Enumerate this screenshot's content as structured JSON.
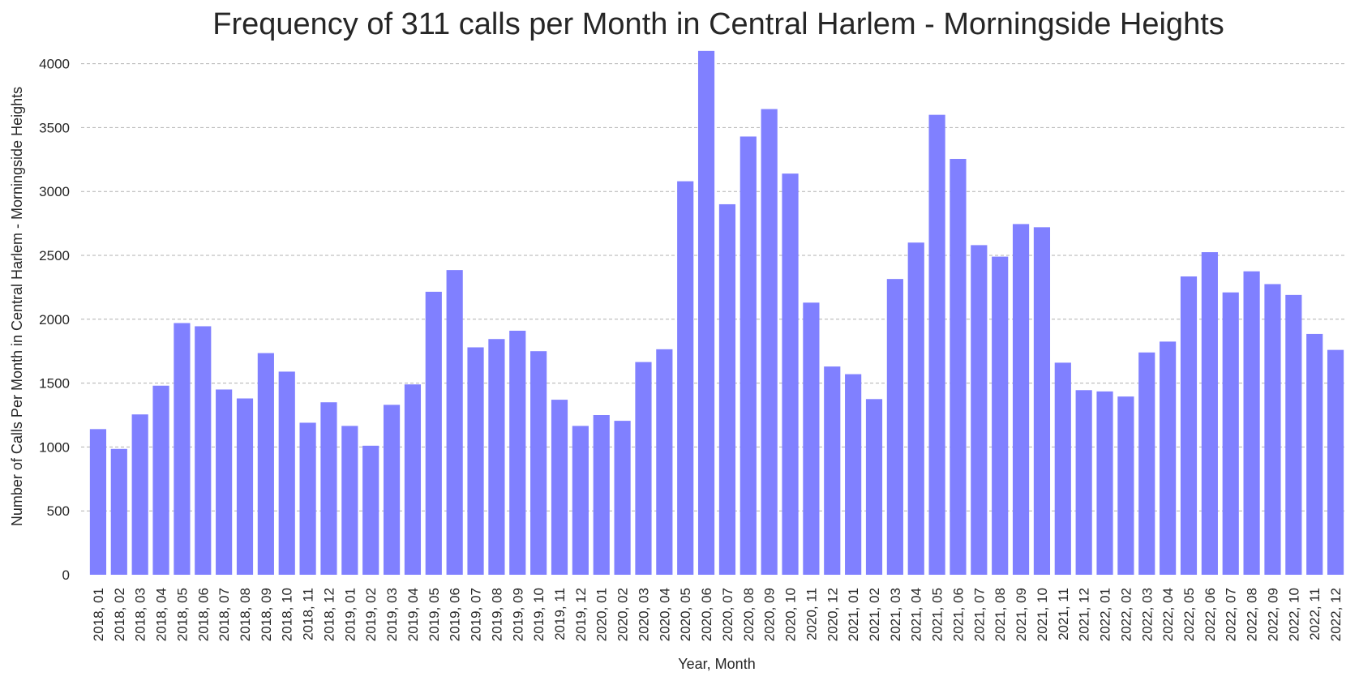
{
  "chart_data": {
    "type": "bar",
    "title": "Frequency of 311 calls per Month in Central Harlem - Morningside Heights",
    "xlabel": "Year, Month",
    "ylabel": "Number of Calls Per Month in Central Harlem - Morningside Heights",
    "ylim": [
      0,
      4100
    ],
    "yticks": [
      0,
      500,
      1000,
      1500,
      2000,
      2500,
      3000,
      3500,
      4000
    ],
    "grid": "horizontal dashed",
    "bar_color": "#8080ff",
    "categories": [
      "2018, 01",
      "2018, 02",
      "2018, 03",
      "2018, 04",
      "2018, 05",
      "2018, 06",
      "2018, 07",
      "2018, 08",
      "2018, 09",
      "2018, 10",
      "2018, 11",
      "2018, 12",
      "2019, 01",
      "2019, 02",
      "2019, 03",
      "2019, 04",
      "2019, 05",
      "2019, 06",
      "2019, 07",
      "2019, 08",
      "2019, 09",
      "2019, 10",
      "2019, 11",
      "2019, 12",
      "2020, 01",
      "2020, 02",
      "2020, 03",
      "2020, 04",
      "2020, 05",
      "2020, 06",
      "2020, 07",
      "2020, 08",
      "2020, 09",
      "2020, 10",
      "2020, 11",
      "2020, 12",
      "2021, 01",
      "2021, 02",
      "2021, 03",
      "2021, 04",
      "2021, 05",
      "2021, 06",
      "2021, 07",
      "2021, 08",
      "2021, 09",
      "2021, 10",
      "2021, 11",
      "2021, 12",
      "2022, 01",
      "2022, 02",
      "2022, 03",
      "2022, 04",
      "2022, 05",
      "2022, 06",
      "2022, 07",
      "2022, 08",
      "2022, 09",
      "2022, 10",
      "2022, 11",
      "2022, 12"
    ],
    "values": [
      1140,
      985,
      1255,
      1480,
      1970,
      1945,
      1450,
      1380,
      1735,
      1590,
      1190,
      1350,
      1165,
      1010,
      1330,
      1490,
      2215,
      2385,
      1780,
      1845,
      1910,
      1750,
      1370,
      1165,
      1250,
      1205,
      1665,
      1765,
      3080,
      4100,
      2900,
      3430,
      3645,
      3140,
      2130,
      1630,
      1570,
      1375,
      2315,
      2600,
      3600,
      3255,
      2580,
      2490,
      2745,
      2720,
      1660,
      1445,
      1435,
      1395,
      1740,
      1825,
      2335,
      2525,
      2210,
      2375,
      2275,
      2190,
      1885,
      1760
    ]
  }
}
